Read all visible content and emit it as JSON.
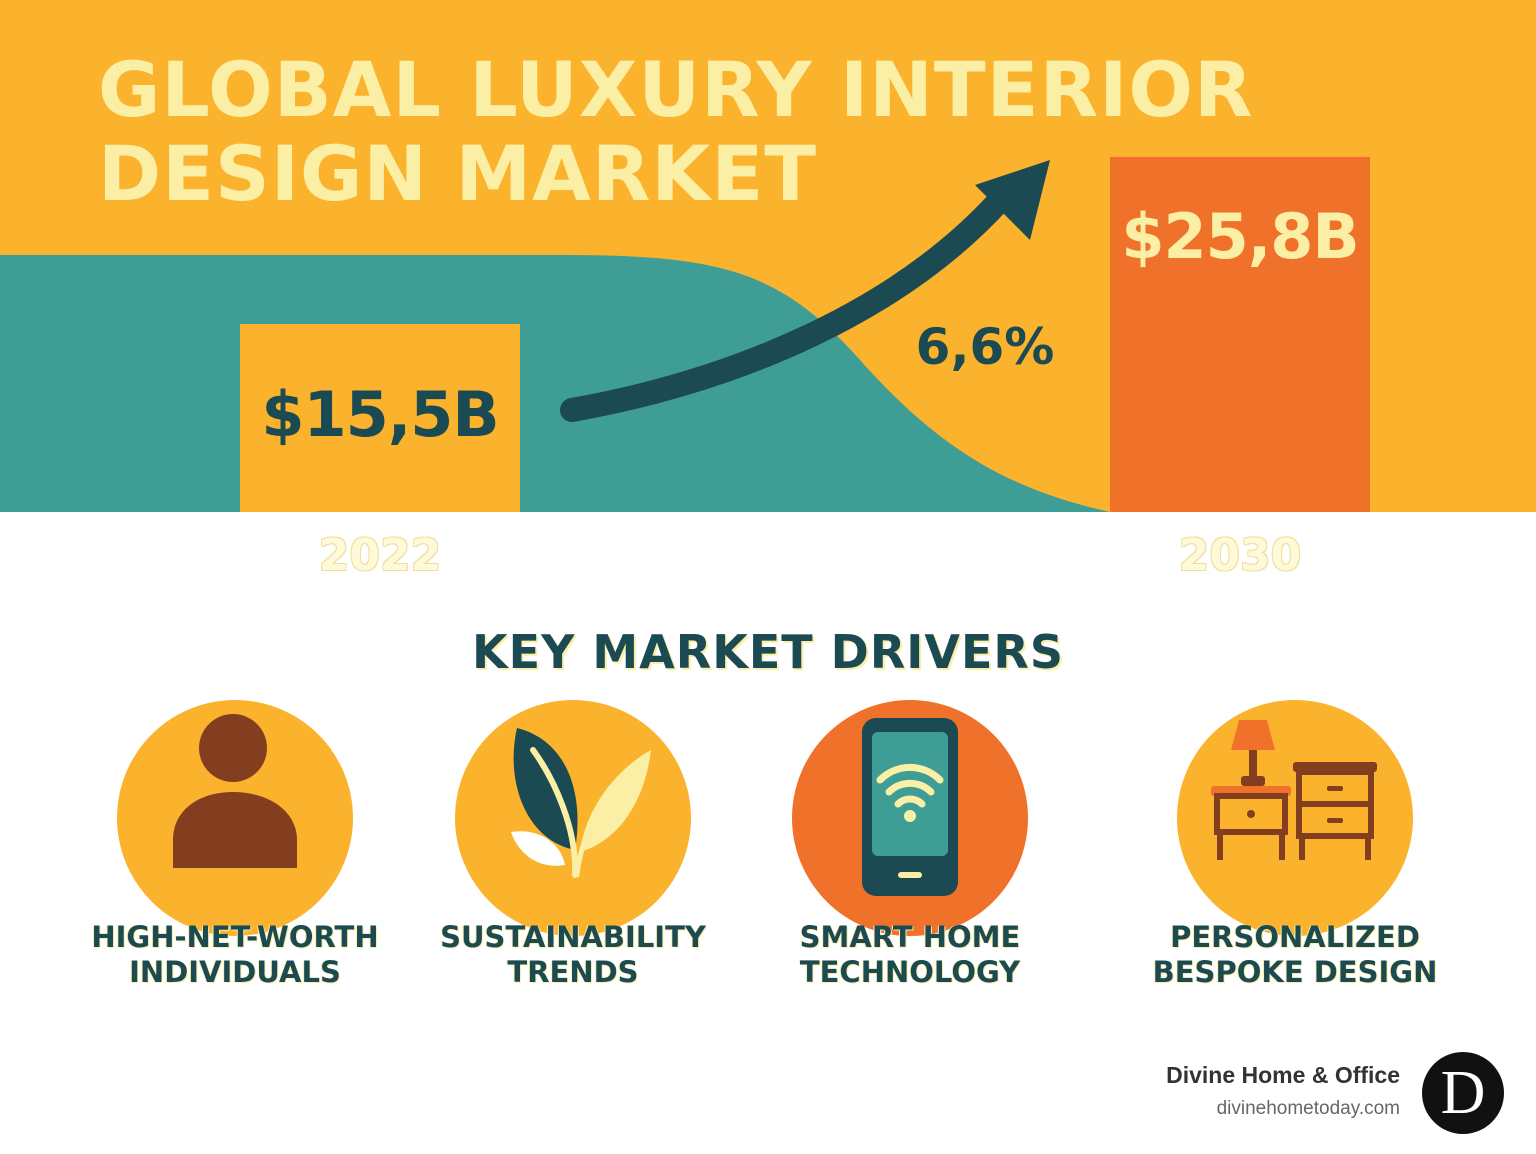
{
  "title": "GLOBAL LUXURY INTERIOR DESIGN MARKET",
  "market": {
    "value_2022": "$15,5B",
    "value_2030": "$25,8B",
    "cagr": "6,6%",
    "year_start": "2022",
    "year_end": "2030"
  },
  "drivers": {
    "heading": "KEY MARKET DRIVERS",
    "items": [
      {
        "line1": "HIGH-NET-WORTH",
        "line2": "INDIVIDUALS",
        "icon": "person-icon"
      },
      {
        "line1": "SUSTAINABILITY",
        "line2": "TRENDS",
        "icon": "leaf-icon"
      },
      {
        "line1": "SMART HOME",
        "line2": "TECHNOLOGY",
        "icon": "smartphone-wifi-icon"
      },
      {
        "line1": "PERSONALIZED",
        "line2": "BESPOKE DESIGN",
        "icon": "furniture-icon"
      }
    ]
  },
  "brand": {
    "name": "Divine Home & Office",
    "url": "divinehometoday.com",
    "logo_letter": "D"
  },
  "colors": {
    "amber": "#FBB22D",
    "teal": "#3E9D95",
    "orange": "#EF712A",
    "dark_teal": "#1B4A52",
    "cream": "#FBEFA6",
    "brown": "#833E20"
  }
}
